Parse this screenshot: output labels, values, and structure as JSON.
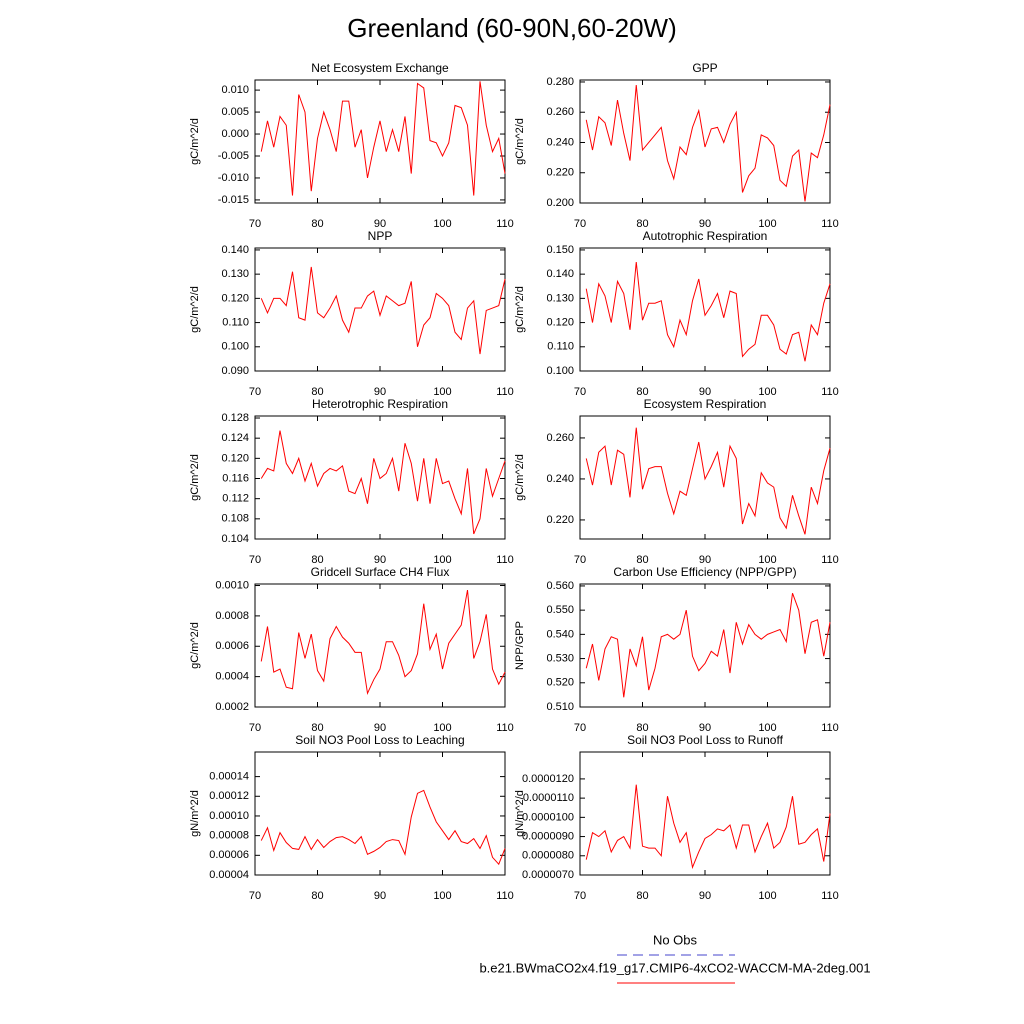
{
  "title": "Greenland (60-90N,60-20W)",
  "legend": [
    {
      "name": "No Obs",
      "color": "#4444cc",
      "line_style": "dashed"
    },
    {
      "name": "b.e21.BWmaCO2x4.f19_g17.CMIP6-4xCO2-WACCM-MA-2deg.001",
      "color": "#ff0000",
      "line_style": "solid"
    }
  ],
  "chart_data": [
    {
      "type": "line",
      "title": "Net Ecosystem Exchange",
      "y_label": "gC/m^2/d",
      "color": "#ff0000",
      "x": [
        71,
        72,
        73,
        74,
        75,
        76,
        77,
        78,
        79,
        80,
        81,
        82,
        83,
        84,
        85,
        86,
        87,
        88,
        89,
        90,
        91,
        92,
        93,
        94,
        95,
        96,
        97,
        98,
        99,
        100,
        101,
        102,
        103,
        104,
        105,
        106,
        107,
        108,
        109,
        110
      ],
      "values": [
        -0.004,
        0.003,
        -0.003,
        0.004,
        0.002,
        -0.014,
        0.009,
        0.005,
        -0.013,
        -0.001,
        0.005,
        0.001,
        -0.004,
        0.0075,
        0.0075,
        -0.003,
        0.001,
        -0.01,
        -0.003,
        0.003,
        -0.004,
        0.001,
        -0.004,
        0.004,
        -0.009,
        0.0115,
        0.0105,
        -0.0015,
        -0.002,
        -0.005,
        -0.002,
        0.0065,
        0.006,
        0.002,
        -0.014,
        0.012,
        0.002,
        -0.004,
        -0.001,
        -0.009
      ],
      "xlim": [
        70,
        110
      ],
      "xticks": [
        70,
        80,
        90,
        100,
        110
      ],
      "ylim": [
        -0.0157,
        0.0123
      ],
      "yticks": [
        -0.015,
        {
          "value": -0.01,
          "label": "-0.010"
        },
        -0.005,
        {
          "value": 0,
          "label": "0.000"
        },
        0.005,
        {
          "value": 0.01,
          "label": "0.010"
        }
      ]
    },
    {
      "type": "line",
      "title": "GPP",
      "y_label": "gC/m^2/d",
      "color": "#ff0000",
      "x": [
        71,
        72,
        73,
        74,
        75,
        76,
        77,
        78,
        79,
        80,
        81,
        82,
        83,
        84,
        85,
        86,
        87,
        88,
        89,
        90,
        91,
        92,
        93,
        94,
        95,
        96,
        97,
        98,
        99,
        100,
        101,
        102,
        103,
        104,
        105,
        106,
        107,
        108,
        109,
        110
      ],
      "values": [
        0.255,
        0.235,
        0.257,
        0.253,
        0.238,
        0.268,
        0.246,
        0.228,
        0.278,
        0.235,
        0.24,
        0.245,
        0.25,
        0.228,
        0.216,
        0.237,
        0.232,
        0.25,
        0.261,
        0.237,
        0.249,
        0.25,
        0.24,
        0.252,
        0.26,
        0.207,
        0.218,
        0.223,
        0.245,
        0.243,
        0.238,
        0.215,
        0.211,
        0.231,
        0.235,
        0.201,
        0.233,
        0.23,
        0.245,
        0.265
      ],
      "xlim": [
        70,
        110
      ],
      "xticks": [
        70,
        80,
        90,
        100,
        110
      ],
      "ylim": [
        0.2,
        0.2813
      ],
      "yticks": [
        {
          "value": 0.2,
          "label": "0.200"
        },
        {
          "value": 0.22,
          "label": "0.220"
        },
        {
          "value": 0.24,
          "label": "0.240"
        },
        {
          "value": 0.26,
          "label": "0.260"
        },
        {
          "value": 0.28,
          "label": "0.280"
        }
      ]
    },
    {
      "type": "line",
      "title": "NPP",
      "y_label": "gC/m^2/d",
      "color": "#ff0000",
      "x": [
        71,
        72,
        73,
        74,
        75,
        76,
        77,
        78,
        79,
        80,
        81,
        82,
        83,
        84,
        85,
        86,
        87,
        88,
        89,
        90,
        91,
        92,
        93,
        94,
        95,
        96,
        97,
        98,
        99,
        100,
        101,
        102,
        103,
        104,
        105,
        106,
        107,
        108,
        109,
        110
      ],
      "values": [
        0.12,
        0.114,
        0.12,
        0.12,
        0.117,
        0.131,
        0.112,
        0.111,
        0.133,
        0.114,
        0.112,
        0.116,
        0.121,
        0.111,
        0.106,
        0.116,
        0.116,
        0.121,
        0.123,
        0.113,
        0.121,
        0.119,
        0.117,
        0.118,
        0.127,
        0.1,
        0.109,
        0.112,
        0.122,
        0.12,
        0.117,
        0.106,
        0.103,
        0.116,
        0.119,
        0.097,
        0.115,
        0.116,
        0.117,
        0.128
      ],
      "xlim": [
        70,
        110
      ],
      "xticks": [
        70,
        80,
        90,
        100,
        110
      ],
      "ylim": [
        0.09,
        0.1408
      ],
      "yticks": [
        {
          "value": 0.09,
          "label": "0.090"
        },
        {
          "value": 0.1,
          "label": "0.100"
        },
        {
          "value": 0.11,
          "label": "0.110"
        },
        {
          "value": 0.12,
          "label": "0.120"
        },
        {
          "value": 0.13,
          "label": "0.130"
        },
        {
          "value": 0.14,
          "label": "0.140"
        }
      ]
    },
    {
      "type": "line",
      "title": "Autotrophic Respiration",
      "y_label": "gC/m^2/d",
      "color": "#ff0000",
      "x": [
        71,
        72,
        73,
        74,
        75,
        76,
        77,
        78,
        79,
        80,
        81,
        82,
        83,
        84,
        85,
        86,
        87,
        88,
        89,
        90,
        91,
        92,
        93,
        94,
        95,
        96,
        97,
        98,
        99,
        100,
        101,
        102,
        103,
        104,
        105,
        106,
        107,
        108,
        109,
        110
      ],
      "values": [
        0.134,
        0.12,
        0.136,
        0.131,
        0.12,
        0.137,
        0.132,
        0.117,
        0.145,
        0.121,
        0.128,
        0.128,
        0.129,
        0.115,
        0.11,
        0.121,
        0.115,
        0.129,
        0.138,
        0.123,
        0.127,
        0.132,
        0.122,
        0.133,
        0.132,
        0.106,
        0.109,
        0.111,
        0.123,
        0.123,
        0.119,
        0.109,
        0.107,
        0.115,
        0.116,
        0.104,
        0.119,
        0.115,
        0.128,
        0.136
      ],
      "xlim": [
        70,
        110
      ],
      "xticks": [
        70,
        80,
        90,
        100,
        110
      ],
      "ylim": [
        0.1,
        0.1508
      ],
      "yticks": [
        {
          "value": 0.1,
          "label": "0.100"
        },
        {
          "value": 0.11,
          "label": "0.110"
        },
        {
          "value": 0.12,
          "label": "0.120"
        },
        {
          "value": 0.13,
          "label": "0.130"
        },
        {
          "value": 0.14,
          "label": "0.140"
        },
        {
          "value": 0.15,
          "label": "0.150"
        }
      ]
    },
    {
      "type": "line",
      "title": "Heterotrophic Respiration",
      "y_label": "gC/m^2/d",
      "color": "#ff0000",
      "x": [
        71,
        72,
        73,
        74,
        75,
        76,
        77,
        78,
        79,
        80,
        81,
        82,
        83,
        84,
        85,
        86,
        87,
        88,
        89,
        90,
        91,
        92,
        93,
        94,
        95,
        96,
        97,
        98,
        99,
        100,
        101,
        102,
        103,
        104,
        105,
        106,
        107,
        108,
        109,
        110
      ],
      "values": [
        0.116,
        0.118,
        0.1175,
        0.1255,
        0.119,
        0.117,
        0.12,
        0.1155,
        0.119,
        0.1145,
        0.117,
        0.118,
        0.1175,
        0.1185,
        0.1135,
        0.113,
        0.116,
        0.111,
        0.12,
        0.116,
        0.117,
        0.12,
        0.1135,
        0.123,
        0.119,
        0.1115,
        0.12,
        0.111,
        0.12,
        0.115,
        0.1155,
        0.112,
        0.109,
        0.118,
        0.105,
        0.108,
        0.118,
        0.1125,
        0.116,
        0.1195
      ],
      "xlim": [
        70,
        110
      ],
      "xticks": [
        70,
        80,
        90,
        100,
        110
      ],
      "ylim": [
        0.104,
        0.1284
      ],
      "yticks": [
        0.104,
        0.108,
        0.112,
        0.116,
        {
          "value": 0.12,
          "label": "0.120"
        },
        0.124,
        0.128
      ]
    },
    {
      "type": "line",
      "title": "Ecosystem Respiration",
      "y_label": "gC/m^2/d",
      "color": "#ff0000",
      "x": [
        71,
        72,
        73,
        74,
        75,
        76,
        77,
        78,
        79,
        80,
        81,
        82,
        83,
        84,
        85,
        86,
        87,
        88,
        89,
        90,
        91,
        92,
        93,
        94,
        95,
        96,
        97,
        98,
        99,
        100,
        101,
        102,
        103,
        104,
        105,
        106,
        107,
        108,
        109,
        110
      ],
      "values": [
        0.25,
        0.237,
        0.253,
        0.256,
        0.237,
        0.254,
        0.252,
        0.231,
        0.265,
        0.235,
        0.245,
        0.246,
        0.246,
        0.233,
        0.223,
        0.234,
        0.232,
        0.245,
        0.258,
        0.24,
        0.246,
        0.253,
        0.236,
        0.256,
        0.25,
        0.218,
        0.228,
        0.222,
        0.243,
        0.238,
        0.236,
        0.221,
        0.216,
        0.232,
        0.222,
        0.213,
        0.236,
        0.228,
        0.244,
        0.255
      ],
      "xlim": [
        70,
        110
      ],
      "xticks": [
        70,
        80,
        90,
        100,
        110
      ],
      "ylim": [
        0.2107,
        0.2707
      ],
      "yticks": [
        {
          "value": 0.22,
          "label": "0.220"
        },
        {
          "value": 0.24,
          "label": "0.240"
        },
        {
          "value": 0.26,
          "label": "0.260"
        }
      ]
    },
    {
      "type": "line",
      "title": "Gridcell Surface CH4 Flux",
      "y_label": "gC/m^2/d",
      "color": "#ff0000",
      "x": [
        71,
        72,
        73,
        74,
        75,
        76,
        77,
        78,
        79,
        80,
        81,
        82,
        83,
        84,
        85,
        86,
        87,
        88,
        89,
        90,
        91,
        92,
        93,
        94,
        95,
        96,
        97,
        98,
        99,
        100,
        101,
        102,
        103,
        104,
        105,
        106,
        107,
        108,
        109,
        110
      ],
      "values": [
        0.0005,
        0.00073,
        0.00043,
        0.00045,
        0.00033,
        0.00032,
        0.00069,
        0.00052,
        0.00068,
        0.00044,
        0.00037,
        0.00065,
        0.00073,
        0.00066,
        0.00062,
        0.00056,
        0.00056,
        0.00029,
        0.00038,
        0.00045,
        0.00063,
        0.00063,
        0.00054,
        0.0004,
        0.00044,
        0.00055,
        0.00088,
        0.00058,
        0.00068,
        0.00045,
        0.00062,
        0.00068,
        0.00074,
        0.00097,
        0.00052,
        0.00063,
        0.00081,
        0.00045,
        0.00035,
        0.00043
      ],
      "xlim": [
        70,
        110
      ],
      "xticks": [
        70,
        80,
        90,
        100,
        110
      ],
      "ylim": [
        0.0002,
        0.00101
      ],
      "yticks": [
        0.0002,
        0.0004,
        0.0006,
        0.0008,
        {
          "value": 0.001,
          "label": "0.0010"
        }
      ]
    },
    {
      "type": "line",
      "title": "Carbon Use Efficiency (NPP/GPP)",
      "y_label": "NPP/GPP",
      "color": "#ff0000",
      "x": [
        71,
        72,
        73,
        74,
        75,
        76,
        77,
        78,
        79,
        80,
        81,
        82,
        83,
        84,
        85,
        86,
        87,
        88,
        89,
        90,
        91,
        92,
        93,
        94,
        95,
        96,
        97,
        98,
        99,
        100,
        101,
        102,
        103,
        104,
        105,
        106,
        107,
        108,
        109,
        110
      ],
      "values": [
        0.526,
        0.536,
        0.521,
        0.534,
        0.539,
        0.538,
        0.514,
        0.534,
        0.527,
        0.539,
        0.517,
        0.526,
        0.539,
        0.54,
        0.538,
        0.54,
        0.55,
        0.531,
        0.525,
        0.528,
        0.533,
        0.531,
        0.542,
        0.524,
        0.545,
        0.536,
        0.544,
        0.54,
        0.538,
        0.54,
        0.541,
        0.542,
        0.537,
        0.557,
        0.55,
        0.532,
        0.545,
        0.546,
        0.531,
        0.545
      ],
      "xlim": [
        70,
        110
      ],
      "xticks": [
        70,
        80,
        90,
        100,
        110
      ],
      "ylim": [
        0.51,
        0.5608
      ],
      "yticks": [
        {
          "value": 0.51,
          "label": "0.510"
        },
        {
          "value": 0.52,
          "label": "0.520"
        },
        {
          "value": 0.53,
          "label": "0.530"
        },
        {
          "value": 0.54,
          "label": "0.540"
        },
        {
          "value": 0.55,
          "label": "0.550"
        },
        {
          "value": 0.56,
          "label": "0.560"
        }
      ]
    },
    {
      "type": "line",
      "title": "Soil NO3 Pool Loss to Leaching",
      "y_label": "gN/m^2/d",
      "color": "#ff0000",
      "x": [
        71,
        72,
        73,
        74,
        75,
        76,
        77,
        78,
        79,
        80,
        81,
        82,
        83,
        84,
        85,
        86,
        87,
        88,
        89,
        90,
        91,
        92,
        93,
        94,
        95,
        96,
        97,
        98,
        99,
        100,
        101,
        102,
        103,
        104,
        105,
        106,
        107,
        108,
        109,
        110
      ],
      "values": [
        7.5e-05,
        8.8e-05,
        6.5e-05,
        8.3e-05,
        7.3e-05,
        6.7e-05,
        6.6e-05,
        7.9e-05,
        6.6e-05,
        7.6e-05,
        6.8e-05,
        7.4e-05,
        7.8e-05,
        7.9e-05,
        7.6e-05,
        7.2e-05,
        7.9e-05,
        6.1e-05,
        6.4e-05,
        6.8e-05,
        7.4e-05,
        7.6e-05,
        7.5e-05,
        6.1e-05,
        9.9e-05,
        0.000123,
        0.000126,
        0.000109,
        9.4e-05,
        8.5e-05,
        7.6e-05,
        8.5e-05,
        7.4e-05,
        7.2e-05,
        7.7e-05,
        6.7e-05,
        8e-05,
        5.8e-05,
        5.1e-05,
        6.7e-05
      ],
      "xlim": [
        70,
        110
      ],
      "xticks": [
        70,
        80,
        90,
        100,
        110
      ],
      "ylim": [
        4e-05,
        0.000165
      ],
      "yticks": [
        4e-05,
        6e-05,
        8e-05,
        {
          "value": 0.0001,
          "label": "0.00010"
        },
        0.00012,
        0.00014
      ]
    },
    {
      "type": "line",
      "title": "Soil NO3 Pool Loss to Runoff",
      "y_label": "gN/m^2/d",
      "color": "#ff0000",
      "x": [
        71,
        72,
        73,
        74,
        75,
        76,
        77,
        78,
        79,
        80,
        81,
        82,
        83,
        84,
        85,
        86,
        87,
        88,
        89,
        90,
        91,
        92,
        93,
        94,
        95,
        96,
        97,
        98,
        99,
        100,
        101,
        102,
        103,
        104,
        105,
        106,
        107,
        108,
        109,
        110
      ],
      "values": [
        7.8e-06,
        9.2e-06,
        9e-06,
        9.3e-06,
        8.2e-06,
        8.8e-06,
        9e-06,
        8.4e-06,
        1.17e-05,
        8.5e-06,
        8.4e-06,
        8.4e-06,
        8e-06,
        1.11e-05,
        9.7e-06,
        8.7e-06,
        9.2e-06,
        7.4e-06,
        8.2e-06,
        8.9e-06,
        9.1e-06,
        9.4e-06,
        9.3e-06,
        9.6e-06,
        8.4e-06,
        9.6e-06,
        9.6e-06,
        8.2e-06,
        9e-06,
        9.7e-06,
        8.4e-06,
        8.7e-06,
        9.5e-06,
        1.11e-05,
        8.6e-06,
        8.7e-06,
        9.1e-06,
        9.4e-06,
        7.7e-06,
        1.02e-05
      ],
      "xlim": [
        70,
        110
      ],
      "xticks": [
        70,
        80,
        90,
        100,
        110
      ],
      "ylim": [
        7e-06,
        1.34e-05
      ],
      "yticks": [
        {
          "value": 7e-06,
          "label": "0.0000070"
        },
        {
          "value": 8e-06,
          "label": "0.0000080"
        },
        {
          "value": 9e-06,
          "label": "0.0000090"
        },
        {
          "value": 1e-05,
          "label": "0.0000100"
        },
        {
          "value": 1.1e-05,
          "label": "0.0000110"
        },
        {
          "value": 1.2e-05,
          "label": "0.0000120"
        }
      ]
    }
  ]
}
